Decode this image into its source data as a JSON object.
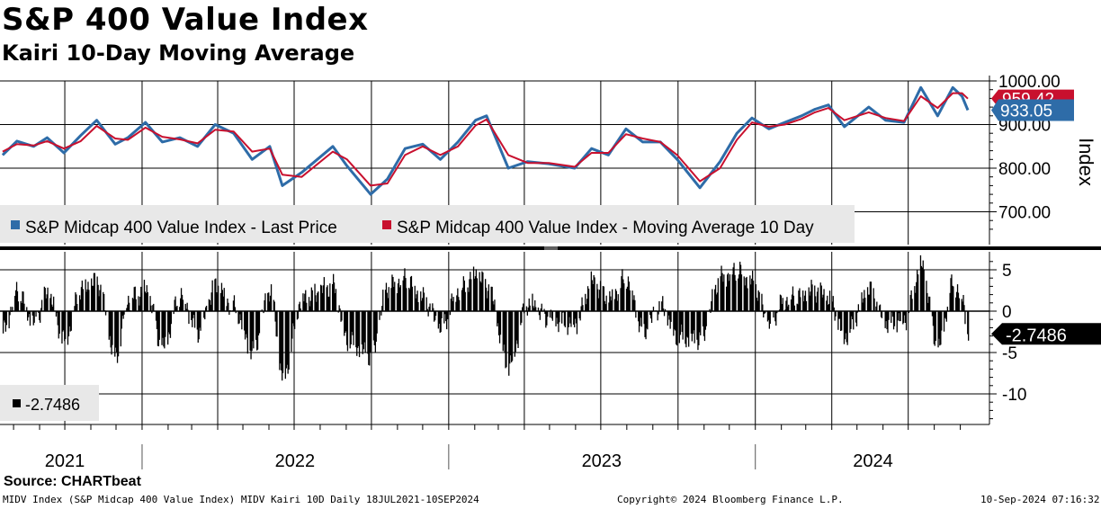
{
  "title": "S&P 400 Value Index",
  "subtitle": "Kairi 10-Day Moving Average",
  "source": "Source: CHARTbeat",
  "footer": {
    "left": "MIDV Index (S&P Midcap 400 Value Index) MIDV Kairi 10D  Daily 18JUL2021-10SEP2024",
    "center": "Copyright© 2024 Bloomberg Finance L.P.",
    "right": "10-Sep-2024 07:16:32"
  },
  "colors": {
    "price": "#2e6ca8",
    "ma": "#c8102e",
    "kairi": "#000000",
    "grid": "#000000",
    "legend_bg": "#e8e8e8"
  },
  "chart_data": [
    {
      "type": "line",
      "ylabel": "Index",
      "ylim": [
        650,
        1010
      ],
      "yticks": [
        "1000.00",
        "900.00",
        "800.00",
        "700.00"
      ],
      "ytick_values": [
        1000,
        900,
        800,
        700
      ],
      "x_start": "2021-07-18",
      "x_end": "2024-09-10",
      "legend": [
        {
          "name": "S&P Midcap 400 Value Index - Last Price",
          "color": "#2e6ca8"
        },
        {
          "name": "S&P Midcap 400 Value Index - Moving Average 10 Day",
          "color": "#c8102e"
        }
      ],
      "last_values": [
        {
          "label": "959.42",
          "color": "#c8102e"
        },
        {
          "label": "933.05",
          "color": "#2e6ca8"
        }
      ],
      "series": [
        {
          "name": "S&P Midcap 400 Value Index - Last Price",
          "points": [
            [
              "2021-07-19",
              830
            ],
            [
              "2021-08-05",
              862
            ],
            [
              "2021-08-25",
              850
            ],
            [
              "2021-09-10",
              870
            ],
            [
              "2021-09-30",
              835
            ],
            [
              "2021-10-20",
              875
            ],
            [
              "2021-11-08",
              910
            ],
            [
              "2021-11-30",
              855
            ],
            [
              "2021-12-15",
              870
            ],
            [
              "2022-01-05",
              905
            ],
            [
              "2022-01-25",
              860
            ],
            [
              "2022-02-15",
              870
            ],
            [
              "2022-03-08",
              850
            ],
            [
              "2022-03-29",
              900
            ],
            [
              "2022-04-20",
              880
            ],
            [
              "2022-05-12",
              820
            ],
            [
              "2022-06-02",
              850
            ],
            [
              "2022-06-17",
              760
            ],
            [
              "2022-07-10",
              790
            ],
            [
              "2022-08-16",
              850
            ],
            [
              "2022-09-02",
              805
            ],
            [
              "2022-09-30",
              740
            ],
            [
              "2022-10-20",
              775
            ],
            [
              "2022-11-10",
              845
            ],
            [
              "2022-12-01",
              855
            ],
            [
              "2022-12-22",
              820
            ],
            [
              "2023-01-12",
              860
            ],
            [
              "2023-02-02",
              910
            ],
            [
              "2023-02-15",
              920
            ],
            [
              "2023-03-13",
              800
            ],
            [
              "2023-04-05",
              815
            ],
            [
              "2023-04-30",
              810
            ],
            [
              "2023-05-31",
              800
            ],
            [
              "2023-06-20",
              845
            ],
            [
              "2023-07-10",
              830
            ],
            [
              "2023-07-31",
              890
            ],
            [
              "2023-08-20",
              860
            ],
            [
              "2023-09-10",
              860
            ],
            [
              "2023-09-30",
              820
            ],
            [
              "2023-10-27",
              755
            ],
            [
              "2023-11-20",
              815
            ],
            [
              "2023-12-10",
              880
            ],
            [
              "2023-12-28",
              915
            ],
            [
              "2024-01-17",
              890
            ],
            [
              "2024-02-05",
              905
            ],
            [
              "2024-02-25",
              920
            ],
            [
              "2024-03-12",
              935
            ],
            [
              "2024-03-28",
              945
            ],
            [
              "2024-04-16",
              895
            ],
            [
              "2024-05-15",
              940
            ],
            [
              "2024-06-04",
              910
            ],
            [
              "2024-06-26",
              905
            ],
            [
              "2024-07-16",
              985
            ],
            [
              "2024-08-05",
              920
            ],
            [
              "2024-08-23",
              985
            ],
            [
              "2024-09-03",
              965
            ],
            [
              "2024-09-10",
              933.05
            ]
          ]
        },
        {
          "name": "S&P Midcap 400 Value Index - Moving Average 10 Day",
          "points": [
            [
              "2021-07-19",
              838
            ],
            [
              "2021-08-05",
              855
            ],
            [
              "2021-08-25",
              852
            ],
            [
              "2021-09-10",
              862
            ],
            [
              "2021-09-30",
              845
            ],
            [
              "2021-10-20",
              862
            ],
            [
              "2021-11-08",
              897
            ],
            [
              "2021-11-30",
              868
            ],
            [
              "2021-12-15",
              865
            ],
            [
              "2022-01-05",
              893
            ],
            [
              "2022-01-25",
              872
            ],
            [
              "2022-02-15",
              866
            ],
            [
              "2022-03-08",
              857
            ],
            [
              "2022-03-29",
              888
            ],
            [
              "2022-04-20",
              884
            ],
            [
              "2022-05-12",
              838
            ],
            [
              "2022-06-02",
              845
            ],
            [
              "2022-06-17",
              785
            ],
            [
              "2022-07-10",
              780
            ],
            [
              "2022-08-16",
              838
            ],
            [
              "2022-09-02",
              820
            ],
            [
              "2022-09-30",
              760
            ],
            [
              "2022-10-20",
              765
            ],
            [
              "2022-11-10",
              830
            ],
            [
              "2022-12-01",
              850
            ],
            [
              "2022-12-22",
              830
            ],
            [
              "2023-01-12",
              850
            ],
            [
              "2023-02-02",
              898
            ],
            [
              "2023-02-15",
              912
            ],
            [
              "2023-03-13",
              830
            ],
            [
              "2023-04-05",
              812
            ],
            [
              "2023-04-30",
              812
            ],
            [
              "2023-05-31",
              803
            ],
            [
              "2023-06-20",
              835
            ],
            [
              "2023-07-10",
              835
            ],
            [
              "2023-07-31",
              878
            ],
            [
              "2023-08-20",
              868
            ],
            [
              "2023-09-10",
              860
            ],
            [
              "2023-09-30",
              830
            ],
            [
              "2023-10-27",
              770
            ],
            [
              "2023-11-20",
              800
            ],
            [
              "2023-12-10",
              865
            ],
            [
              "2023-12-28",
              905
            ],
            [
              "2024-01-17",
              895
            ],
            [
              "2024-02-05",
              900
            ],
            [
              "2024-02-25",
              913
            ],
            [
              "2024-03-12",
              928
            ],
            [
              "2024-03-28",
              938
            ],
            [
              "2024-04-16",
              910
            ],
            [
              "2024-05-15",
              928
            ],
            [
              "2024-06-04",
              915
            ],
            [
              "2024-06-26",
              908
            ],
            [
              "2024-07-16",
              965
            ],
            [
              "2024-08-05",
              938
            ],
            [
              "2024-08-23",
              972
            ],
            [
              "2024-09-03",
              972
            ],
            [
              "2024-09-10",
              959.42
            ]
          ]
        }
      ]
    },
    {
      "type": "bar",
      "name": "MIDV Kairi 10D",
      "ylim": [
        -14,
        7
      ],
      "yticks": [
        "5",
        "0",
        "-5",
        "-10"
      ],
      "ytick_values": [
        5,
        0,
        -5,
        -10
      ],
      "last_value_label": "-2.7486",
      "legend_label": "-2.7486",
      "x_labels": [
        "2021",
        "2022",
        "2023",
        "2024"
      ],
      "x_label_dates": [
        "2021-07-01",
        "2022-01-01",
        "2023-01-01",
        "2024-01-01"
      ],
      "x_dividers": [
        "2022-01-01",
        "2023-01-01",
        "2024-01-01"
      ],
      "anchors": [
        [
          "2021-07-19",
          -2.5
        ],
        [
          "2021-08-05",
          2.5
        ],
        [
          "2021-08-25",
          -1.5
        ],
        [
          "2021-09-10",
          2.2
        ],
        [
          "2021-09-30",
          -3.5
        ],
        [
          "2021-10-20",
          2.8
        ],
        [
          "2021-11-08",
          3.5
        ],
        [
          "2021-11-30",
          -5.5
        ],
        [
          "2021-12-15",
          1.5
        ],
        [
          "2022-01-05",
          2.5
        ],
        [
          "2022-01-25",
          -4.5
        ],
        [
          "2022-02-15",
          2.0
        ],
        [
          "2022-03-08",
          -2.5
        ],
        [
          "2022-03-29",
          3.0
        ],
        [
          "2022-04-20",
          0.5
        ],
        [
          "2022-05-12",
          -5.0
        ],
        [
          "2022-06-02",
          2.5
        ],
        [
          "2022-06-17",
          -8.0
        ],
        [
          "2022-07-10",
          1.5
        ],
        [
          "2022-08-16",
          3.0
        ],
        [
          "2022-09-02",
          -3.5
        ],
        [
          "2022-09-30",
          -5.5
        ],
        [
          "2022-10-20",
          3.0
        ],
        [
          "2022-11-10",
          4.0
        ],
        [
          "2022-12-01",
          1.5
        ],
        [
          "2022-12-22",
          -2.0
        ],
        [
          "2023-01-12",
          2.5
        ],
        [
          "2023-02-02",
          4.5
        ],
        [
          "2023-02-15",
          3.0
        ],
        [
          "2023-03-13",
          -6.5
        ],
        [
          "2023-04-05",
          1.0
        ],
        [
          "2023-04-30",
          -1.0
        ],
        [
          "2023-05-31",
          -1.5
        ],
        [
          "2023-06-20",
          3.5
        ],
        [
          "2023-07-10",
          1.5
        ],
        [
          "2023-07-31",
          4.0
        ],
        [
          "2023-08-20",
          -2.5
        ],
        [
          "2023-09-10",
          0.5
        ],
        [
          "2023-09-30",
          -3.0
        ],
        [
          "2023-10-27",
          -3.5
        ],
        [
          "2023-11-20",
          4.0
        ],
        [
          "2023-12-10",
          5.0
        ],
        [
          "2023-12-28",
          3.5
        ],
        [
          "2024-01-17",
          -1.5
        ],
        [
          "2024-02-05",
          1.5
        ],
        [
          "2024-02-25",
          2.0
        ],
        [
          "2024-03-12",
          2.5
        ],
        [
          "2024-03-28",
          1.5
        ],
        [
          "2024-04-16",
          -3.0
        ],
        [
          "2024-05-15",
          2.5
        ],
        [
          "2024-06-04",
          -1.5
        ],
        [
          "2024-06-26",
          -1.0
        ],
        [
          "2024-07-16",
          5.5
        ],
        [
          "2024-08-05",
          -4.5
        ],
        [
          "2024-08-23",
          3.5
        ],
        [
          "2024-09-03",
          1.5
        ],
        [
          "2024-09-10",
          -2.7486
        ]
      ]
    }
  ]
}
